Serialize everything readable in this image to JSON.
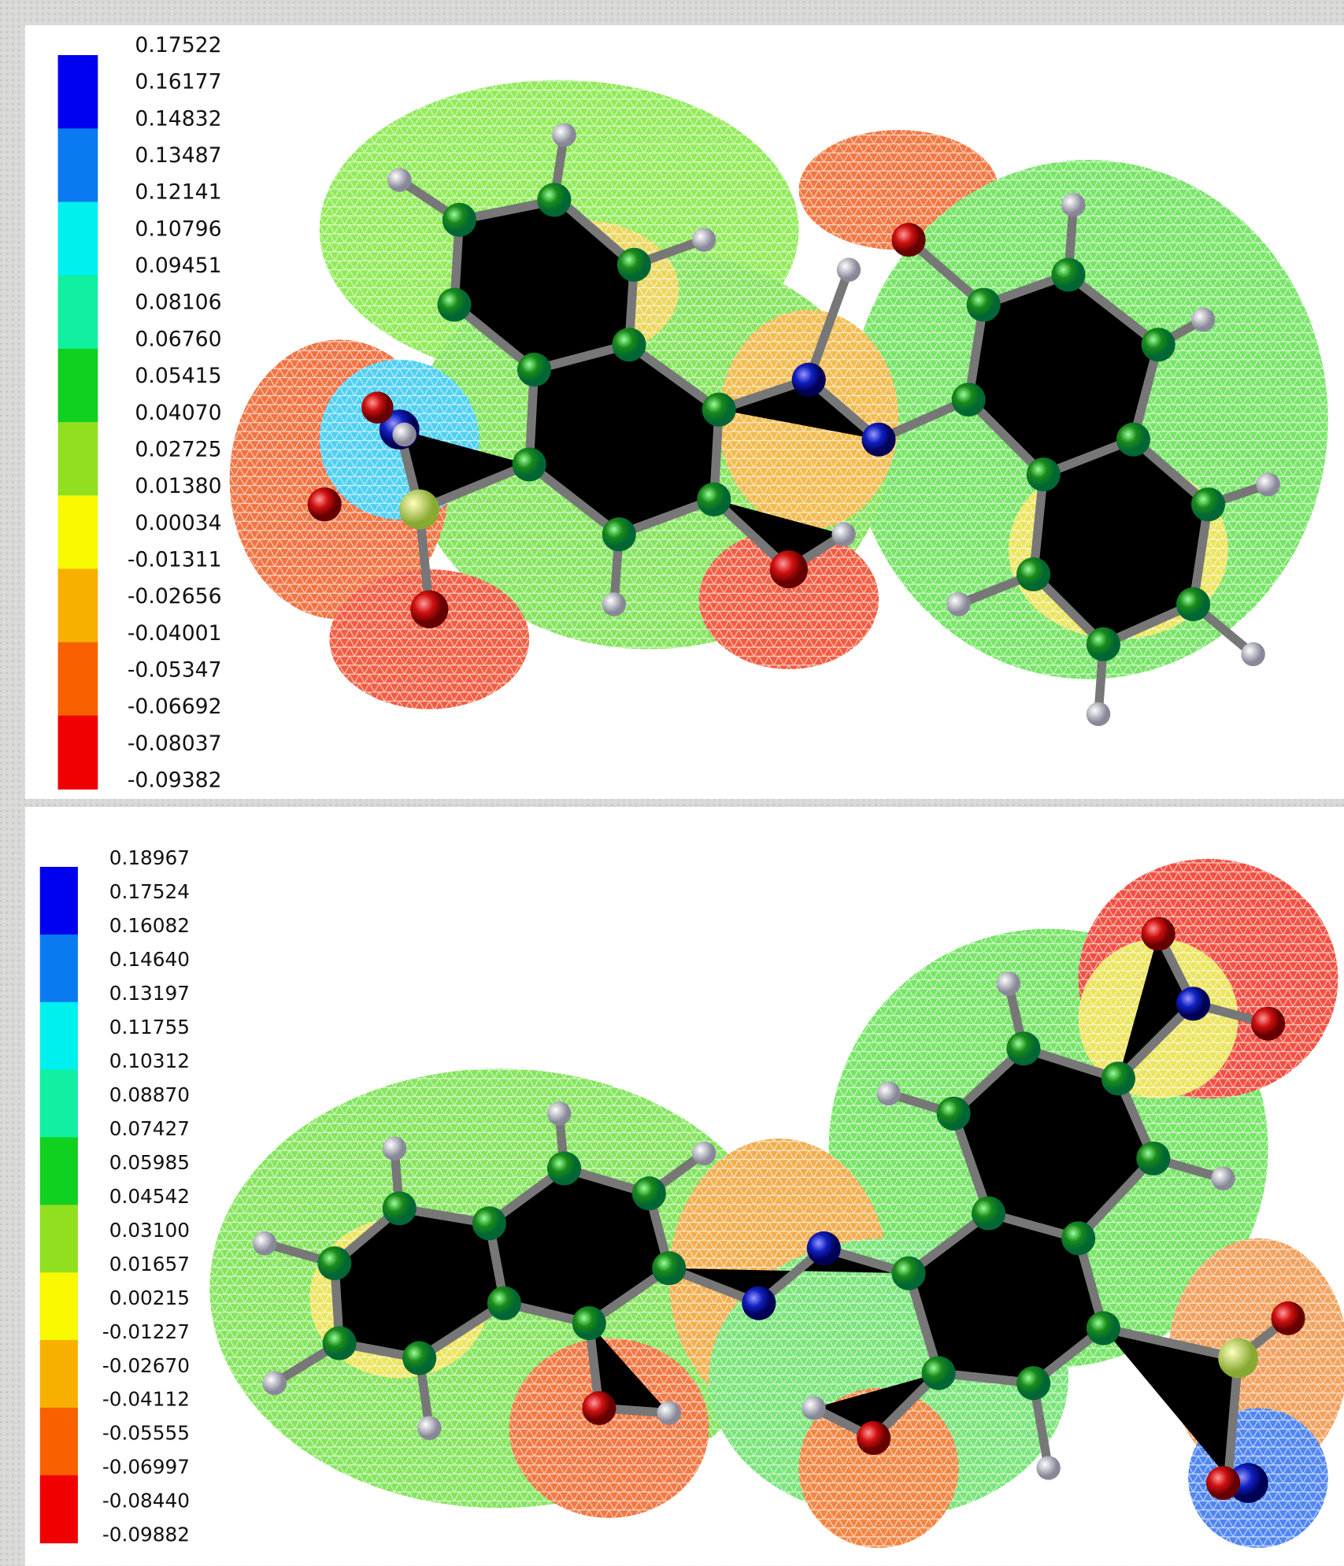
{
  "panels": [
    {
      "scale_labels": [
        "0.17522",
        "0.16177",
        "0.14832",
        "0.13487",
        "0.12141",
        "0.10796",
        "0.09451",
        "0.08106",
        "0.06760",
        "0.05415",
        "0.04070",
        "0.02725",
        "0.01380",
        "0.00034",
        "-0.01311",
        "-0.02656",
        "-0.04001",
        "-0.05347",
        "-0.06692",
        "-0.08037",
        "-0.09382"
      ]
    },
    {
      "scale_labels": [
        "0.18967",
        "0.17524",
        "0.16082",
        "0.14640",
        "0.13197",
        "0.11755",
        "0.10312",
        "0.08870",
        "0.07427",
        "0.05985",
        "0.04542",
        "0.03100",
        "0.01657",
        "0.00215",
        "-0.01227",
        "-0.02670",
        "-0.04112",
        "-0.05555",
        "-0.06997",
        "-0.08440",
        "-0.09882"
      ]
    }
  ]
}
